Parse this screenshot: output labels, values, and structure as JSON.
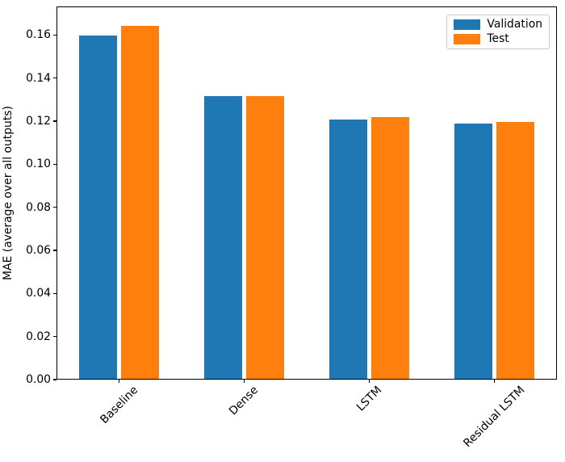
{
  "chart_data": {
    "type": "bar",
    "categories": [
      "Baseline",
      "Dense",
      "LSTM",
      "Residual LSTM"
    ],
    "series": [
      {
        "name": "Validation",
        "color": "#1f77b4",
        "values": [
          0.1595,
          0.1313,
          0.1202,
          0.1184
        ]
      },
      {
        "name": "Test",
        "color": "#ff7f0e",
        "values": [
          0.1639,
          0.1311,
          0.1216,
          0.1194
        ]
      }
    ],
    "title": "",
    "xlabel": "",
    "ylabel": "MAE (average over all outputs)",
    "ylim": [
      0,
      0.1732
    ],
    "ytick_labels": [
      "0.00",
      "0.02",
      "0.04",
      "0.06",
      "0.08",
      "0.10",
      "0.12",
      "0.14",
      "0.16"
    ],
    "grid": false,
    "legend": {
      "position": "upper right",
      "entries": [
        "Validation",
        "Test"
      ]
    },
    "colors": {
      "axis": "#000000",
      "text": "#000000",
      "legend_border": "#cccccc",
      "background": "#ffffff"
    }
  }
}
